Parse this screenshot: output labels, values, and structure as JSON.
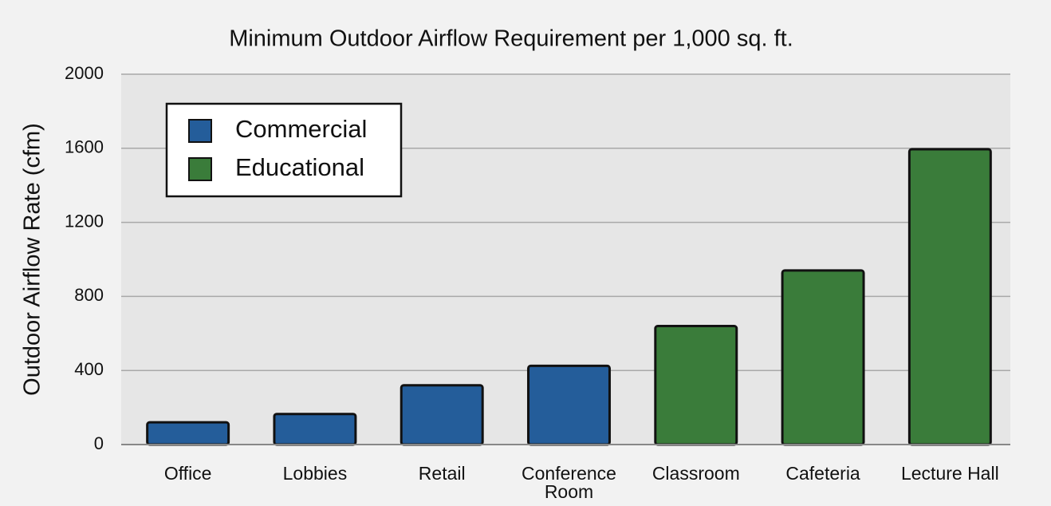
{
  "chart_data": {
    "type": "bar",
    "title": "Minimum Outdoor Airflow Requirement per 1,000 sq. ft.",
    "y_label": "Outdoor Airflow Rate (cfm)",
    "categories": [
      "Office",
      "Lobbies",
      "Retail",
      "Conference Room",
      "Classroom",
      "Cafeteria",
      "Lecture Hall"
    ],
    "series": [
      {
        "name": "Commercial",
        "color": "#245d9a",
        "values": [
          120,
          165,
          320,
          425,
          null,
          null,
          null
        ]
      },
      {
        "name": "Educational",
        "color": "#3a7c3a",
        "values": [
          null,
          null,
          null,
          null,
          640,
          940,
          1595
        ]
      }
    ],
    "ylim": [
      0,
      2000
    ],
    "yticks": [
      0,
      400,
      800,
      1200,
      1600,
      2000
    ],
    "grid": true,
    "legend": "upper left"
  }
}
